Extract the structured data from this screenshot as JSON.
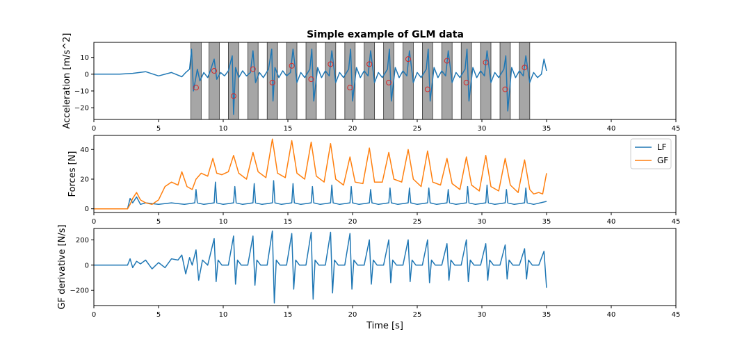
{
  "chart_data": [
    {
      "type": "line",
      "title": "Simple example of GLM data",
      "xlabel": "",
      "ylabel": "Acceleration [m/s^2]",
      "xlim": [
        0,
        45
      ],
      "ylim": [
        -27,
        19
      ],
      "xticks": [
        0,
        5,
        10,
        15,
        20,
        25,
        30,
        35,
        40,
        45
      ],
      "yticks": [
        -20,
        -10,
        0,
        10
      ],
      "colors": {
        "series": "#1f77b4",
        "marker": "#d62728",
        "band": "#a6a6a6"
      },
      "shaded_intervals": [
        [
          7.5,
          8.3
        ],
        [
          8.9,
          9.7
        ],
        [
          10.4,
          11.2
        ],
        [
          11.9,
          12.7
        ],
        [
          13.4,
          14.2
        ],
        [
          14.9,
          15.7
        ],
        [
          16.4,
          17.2
        ],
        [
          17.9,
          18.7
        ],
        [
          19.4,
          20.2
        ],
        [
          20.9,
          21.7
        ],
        [
          22.4,
          23.2
        ],
        [
          23.9,
          24.7
        ],
        [
          25.4,
          26.2
        ],
        [
          26.9,
          27.7
        ],
        [
          28.4,
          29.2
        ],
        [
          29.9,
          30.7
        ],
        [
          31.4,
          32.2
        ],
        [
          32.9,
          33.7
        ]
      ],
      "event_markers": {
        "x": [
          7.9,
          9.3,
          10.8,
          12.3,
          13.8,
          15.3,
          16.8,
          18.3,
          19.8,
          21.3,
          22.8,
          24.3,
          25.8,
          27.3,
          28.8,
          30.3,
          31.8,
          33.3
        ],
        "y": [
          -8,
          2,
          -13,
          3,
          -5,
          5,
          -3,
          6,
          -8,
          6,
          -5,
          9,
          -9,
          8,
          -5,
          7,
          -9,
          4
        ]
      },
      "series": [
        {
          "x": [
            0,
            2.0,
            3.0,
            4.0,
            5.0,
            6.0,
            6.8,
            7.1,
            7.4,
            7.55,
            7.7,
            8.0,
            8.2,
            8.5,
            8.8,
            9.0,
            9.3,
            9.5,
            9.8,
            10.1,
            10.4,
            10.7,
            10.8,
            10.95,
            11.2,
            11.5,
            11.8,
            12.1,
            12.3,
            12.5,
            12.8,
            13.1,
            13.5,
            13.75,
            13.85,
            14.0,
            14.3,
            14.6,
            14.9,
            15.2,
            15.4,
            15.7,
            16.0,
            16.3,
            16.7,
            16.85,
            17.0,
            17.3,
            17.6,
            17.9,
            18.2,
            18.4,
            18.7,
            19.0,
            19.3,
            19.7,
            19.85,
            20.0,
            20.3,
            20.6,
            20.9,
            21.2,
            21.4,
            21.7,
            22.0,
            22.3,
            22.7,
            22.85,
            23.0,
            23.3,
            23.6,
            23.9,
            24.2,
            24.4,
            24.7,
            25.0,
            25.3,
            25.7,
            25.85,
            26.0,
            26.3,
            26.6,
            26.9,
            27.2,
            27.4,
            27.7,
            28.0,
            28.3,
            28.7,
            28.85,
            29.0,
            29.3,
            29.6,
            29.9,
            30.2,
            30.4,
            30.7,
            31.0,
            31.3,
            31.7,
            31.85,
            32.0,
            32.3,
            32.6,
            32.9,
            33.2,
            33.4,
            33.7,
            34.0,
            34.3,
            34.6,
            34.8,
            35.0
          ],
          "y": [
            0,
            0,
            0.5,
            1.5,
            -1,
            1,
            -1.5,
            1,
            3,
            15,
            -10,
            3,
            -4,
            1,
            -2,
            2,
            9,
            -3,
            1,
            -1,
            2,
            11,
            -24,
            4,
            -2,
            2,
            -1,
            1,
            14,
            -5,
            1,
            -2,
            3,
            15,
            -16,
            4,
            -2,
            2,
            -1,
            1,
            15,
            -5,
            1,
            -2,
            3,
            15,
            -16,
            4,
            -2,
            2,
            -1,
            14,
            -5,
            1,
            -2,
            3,
            15,
            -16,
            4,
            -2,
            2,
            -1,
            14,
            -5,
            1,
            -2,
            3,
            15,
            -16,
            4,
            -2,
            2,
            -1,
            14,
            -5,
            1,
            -2,
            3,
            15,
            -16,
            4,
            -2,
            2,
            -1,
            14,
            -5,
            1,
            -2,
            3,
            15,
            -16,
            4,
            -2,
            2,
            -1,
            14,
            -5,
            1,
            -2,
            3,
            11,
            -22,
            4,
            -2,
            2,
            -1,
            11,
            -5,
            1,
            -2,
            0,
            9,
            2
          ]
        }
      ]
    },
    {
      "type": "line",
      "title": "",
      "xlabel": "",
      "ylabel": "Forces [N]",
      "xlim": [
        0,
        45
      ],
      "ylim": [
        -2.5,
        49.5
      ],
      "xticks": [
        0,
        5,
        10,
        15,
        20,
        25,
        30,
        35,
        40,
        45
      ],
      "yticks": [
        0,
        20,
        40
      ],
      "legend": {
        "position": "top-right",
        "entries": [
          "LF",
          "GF"
        ]
      },
      "series": [
        {
          "name": "LF",
          "color": "#1f77b4",
          "x": [
            0,
            2.6,
            2.8,
            3.0,
            3.3,
            3.6,
            4.0,
            5.0,
            6.0,
            7.0,
            7.8,
            7.9,
            8.0,
            8.5,
            9.3,
            9.4,
            9.5,
            10.0,
            10.8,
            10.9,
            11.0,
            11.5,
            12.3,
            12.4,
            12.5,
            13.0,
            13.8,
            13.9,
            14.0,
            14.5,
            15.3,
            15.4,
            15.5,
            16.0,
            16.8,
            16.9,
            17.0,
            17.5,
            18.3,
            18.4,
            18.5,
            19.0,
            19.8,
            19.9,
            20.0,
            20.5,
            21.3,
            21.4,
            21.5,
            22.0,
            22.8,
            22.9,
            23.0,
            23.5,
            24.3,
            24.4,
            24.5,
            25.0,
            25.8,
            25.9,
            26.0,
            26.5,
            27.3,
            27.4,
            27.5,
            28.0,
            28.8,
            28.9,
            29.0,
            29.5,
            30.3,
            30.4,
            30.5,
            31.0,
            31.8,
            31.9,
            32.0,
            32.5,
            33.3,
            33.4,
            33.5,
            34.0,
            35.0
          ],
          "y": [
            0,
            0,
            7,
            4,
            8,
            3,
            4,
            3,
            4,
            3,
            4,
            13,
            4,
            3,
            4,
            18,
            4,
            3,
            4,
            15,
            4,
            3,
            4,
            17,
            4,
            3,
            4,
            19,
            4,
            3,
            4,
            17,
            4,
            3,
            4,
            15,
            4,
            3,
            4,
            16,
            4,
            3,
            4,
            15,
            4,
            3,
            4,
            13,
            4,
            3,
            4,
            14,
            4,
            3,
            4,
            14,
            4,
            3,
            4,
            14,
            4,
            3,
            4,
            13,
            4,
            3,
            4,
            15,
            4,
            3,
            4,
            16,
            4,
            3,
            4,
            13,
            4,
            3,
            4,
            14,
            4,
            3,
            5
          ]
        },
        {
          "name": "GF",
          "color": "#ff7f0e",
          "x": [
            0,
            2.6,
            2.8,
            3.0,
            3.3,
            3.6,
            4.0,
            4.5,
            5.0,
            5.5,
            6.0,
            6.5,
            6.8,
            7.2,
            7.6,
            7.9,
            8.3,
            8.8,
            9.2,
            9.5,
            9.9,
            10.4,
            10.8,
            11.2,
            11.8,
            12.3,
            12.7,
            13.3,
            13.8,
            14.2,
            14.8,
            15.3,
            15.7,
            16.3,
            16.8,
            17.2,
            17.8,
            18.3,
            18.7,
            19.3,
            19.8,
            20.2,
            20.8,
            21.3,
            21.7,
            22.3,
            22.8,
            23.2,
            23.8,
            24.3,
            24.7,
            25.3,
            25.8,
            26.2,
            26.8,
            27.3,
            27.7,
            28.3,
            28.8,
            29.2,
            29.8,
            30.3,
            30.7,
            31.3,
            31.8,
            32.2,
            32.8,
            33.3,
            33.7,
            34.0,
            34.4,
            34.7,
            35.0
          ],
          "y": [
            0,
            0,
            3,
            7,
            11,
            6,
            4,
            3,
            6,
            15,
            18,
            16,
            25,
            15,
            13,
            20,
            24,
            22,
            34,
            24,
            23,
            25,
            36,
            24,
            20,
            38,
            25,
            21,
            47,
            24,
            21,
            46,
            24,
            20,
            45,
            22,
            18,
            44,
            20,
            16,
            35,
            18,
            17,
            41,
            18,
            18,
            38,
            20,
            18,
            40,
            20,
            15,
            39,
            18,
            16,
            34,
            17,
            13,
            35,
            16,
            12,
            36,
            15,
            12,
            34,
            16,
            11,
            33,
            13,
            10,
            11,
            10,
            24
          ]
        }
      ]
    },
    {
      "type": "line",
      "title": "",
      "xlabel": "Time [s]",
      "ylabel": "GF derivative [N/s]",
      "xlim": [
        0,
        45
      ],
      "ylim": [
        -320,
        290
      ],
      "xticks": [
        0,
        5,
        10,
        15,
        20,
        25,
        30,
        35,
        40,
        45
      ],
      "yticks": [
        -200,
        0,
        200
      ],
      "series": [
        {
          "color": "#1f77b4",
          "x": [
            0,
            2.6,
            2.8,
            3.0,
            3.3,
            3.6,
            4.0,
            4.5,
            5.0,
            5.5,
            6.0,
            6.5,
            6.8,
            7.1,
            7.4,
            7.6,
            7.9,
            8.1,
            8.4,
            8.8,
            9.3,
            9.45,
            9.6,
            9.9,
            10.4,
            10.8,
            10.95,
            11.1,
            11.4,
            11.9,
            12.3,
            12.45,
            12.6,
            12.9,
            13.4,
            13.8,
            13.95,
            14.1,
            14.4,
            14.9,
            15.3,
            15.45,
            15.6,
            15.9,
            16.4,
            16.8,
            16.95,
            17.1,
            17.4,
            17.9,
            18.3,
            18.45,
            18.6,
            18.9,
            19.4,
            19.8,
            19.95,
            20.1,
            20.4,
            20.9,
            21.3,
            21.45,
            21.6,
            21.9,
            22.4,
            22.8,
            22.95,
            23.1,
            23.4,
            23.9,
            24.3,
            24.45,
            24.6,
            24.9,
            25.4,
            25.8,
            25.95,
            26.1,
            26.4,
            26.9,
            27.3,
            27.45,
            27.6,
            27.9,
            28.4,
            28.8,
            28.95,
            29.1,
            29.4,
            29.9,
            30.3,
            30.45,
            30.6,
            30.9,
            31.4,
            31.8,
            31.95,
            32.1,
            32.4,
            32.9,
            33.3,
            33.45,
            33.6,
            33.9,
            34.4,
            34.8,
            35.0
          ],
          "y": [
            0,
            0,
            50,
            -20,
            30,
            10,
            40,
            -30,
            20,
            -20,
            50,
            40,
            80,
            -70,
            60,
            0,
            120,
            -120,
            40,
            0,
            210,
            -130,
            40,
            0,
            0,
            230,
            -150,
            40,
            0,
            0,
            230,
            -160,
            40,
            0,
            0,
            270,
            -300,
            40,
            0,
            0,
            250,
            -190,
            40,
            0,
            0,
            260,
            -270,
            40,
            0,
            0,
            260,
            -220,
            40,
            0,
            0,
            250,
            -190,
            40,
            0,
            0,
            200,
            -150,
            40,
            0,
            0,
            200,
            -140,
            40,
            0,
            0,
            200,
            -130,
            40,
            0,
            0,
            200,
            -140,
            40,
            0,
            0,
            170,
            -120,
            40,
            0,
            0,
            200,
            -130,
            40,
            0,
            0,
            170,
            -120,
            40,
            0,
            0,
            160,
            -110,
            40,
            0,
            0,
            130,
            -110,
            40,
            0,
            0,
            110,
            -180
          ]
        }
      ]
    }
  ]
}
